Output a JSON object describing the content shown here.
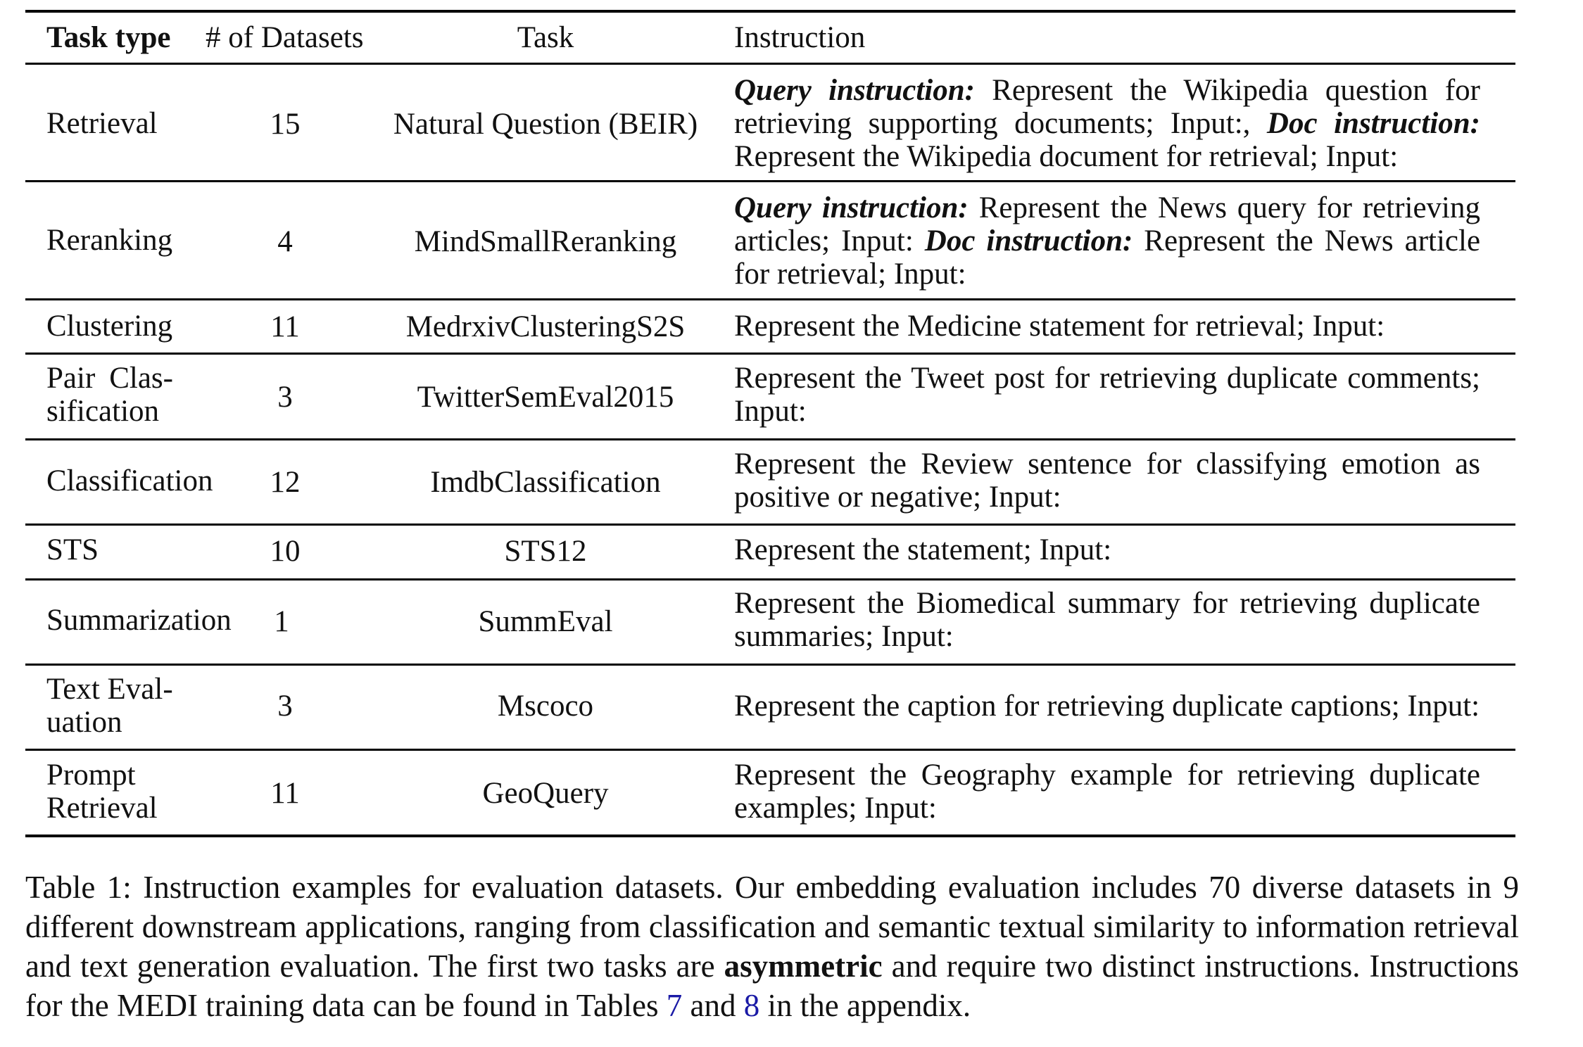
{
  "table": {
    "headers": {
      "task_type": "Task type",
      "num_datasets": "# of Datasets",
      "task": "Task",
      "instruction": "Instruction"
    },
    "rows": [
      {
        "task_type": "Retrieval",
        "num_datasets": "15",
        "task": "Natural Question (BEIR)",
        "instruction": {
          "query_label": "Query instruction:",
          "query_text": "Represent the Wikipedia question for retriev­ing supporting documents; Input:,",
          "doc_label": "Doc instruction:",
          "doc_text": "Represent the Wikipedia document for retrieval; Input:"
        }
      },
      {
        "task_type": "Reranking",
        "num_datasets": "4",
        "task": "MindSmallReranking",
        "instruction": {
          "query_label": "Query instruction:",
          "query_text": "Represent the News query for retrieving articles; Input:",
          "doc_label": "Doc instruction:",
          "doc_text": "Represent the News article for retrieval; Input:"
        }
      },
      {
        "task_type": "Clustering",
        "num_datasets": "11",
        "task": "MedrxivClusteringS2S",
        "instruction": "Represent the Medicine statement for retrieval; Input:"
      },
      {
        "task_type": "Pair Clas­sification",
        "num_datasets": "3",
        "task": "TwitterSemEval2015",
        "instruction": "Represent the Tweet post for retrieving duplicate comments; Input:"
      },
      {
        "task_type": "Classification",
        "num_datasets": "12",
        "task": "ImdbClassification",
        "instruction": "Represent the Review sentence for classifying emotion as posi­tive or negative; Input:"
      },
      {
        "task_type": "STS",
        "num_datasets": "10",
        "task": "STS12",
        "instruction": "Represent the statement; Input:"
      },
      {
        "task_type": "Summarization",
        "num_datasets": "1",
        "task": "SummEval",
        "instruction": "Represent the Biomedical summary for retrieving duplicate sum­maries; Input:"
      },
      {
        "task_type": "Text Eval­uation",
        "num_datasets": "3",
        "task": "Mscoco",
        "instruction": "Represent the caption for retrieving duplicate captions; Input:"
      },
      {
        "task_type": "Prompt Retrieval",
        "num_datasets": "11",
        "task": "GeoQuery",
        "instruction": "Represent the Geography example for retrieving duplicate exam­ples; Input:"
      }
    ]
  },
  "caption": {
    "part1": "Table 1: Instruction examples for evaluation datasets. Our embedding evaluation includes 70 diverse datasets in 9 different downstream applications, ranging from classification and semantic textual similarity to information retrieval and text generation evaluation. The first two tasks are",
    "bold_word": "asymmetric",
    "part2": "and require two distinct instructions. Instructions for the MEDI training data can be found in Tables",
    "ref1": "7",
    "and_word": "and",
    "ref2": "8",
    "part3": "in the appendix."
  }
}
